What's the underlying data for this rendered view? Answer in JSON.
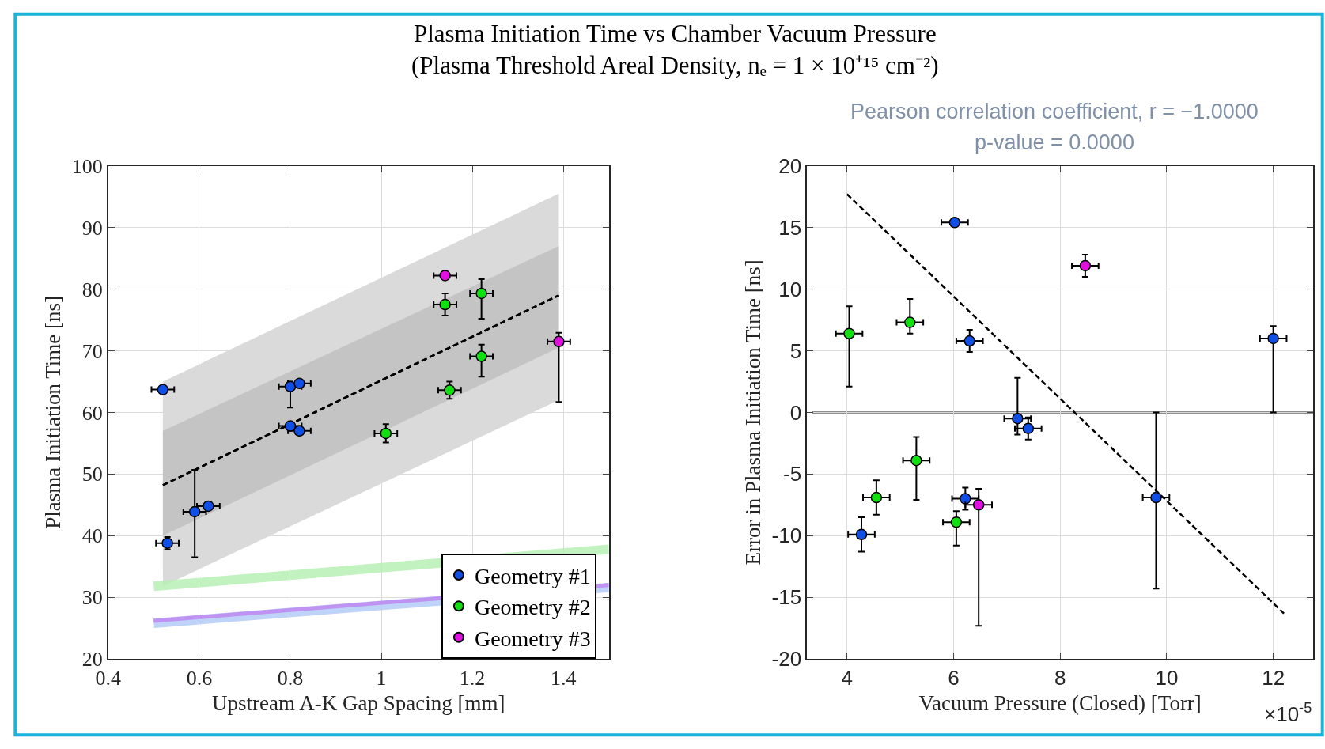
{
  "chart_data": [
    {
      "type": "scatter",
      "title": "Plasma Initiation Time vs Chamber Vacuum Pressure",
      "subtitle": "(Plasma Threshold Areal Density, nₑ = 1 × 10⁺¹⁵ cm⁻²)",
      "xlabel": "Upstream A-K Gap Spacing [mm]",
      "ylabel": "Plasma Initiation Time [ns]",
      "xlim": [
        0.4,
        1.5
      ],
      "xticks": [
        0.4,
        0.6,
        0.8,
        1,
        1.2,
        1.4
      ],
      "ylim": [
        20,
        100
      ],
      "yticks": [
        20,
        30,
        40,
        50,
        60,
        70,
        80,
        90,
        100
      ],
      "grid": true,
      "legend": "bottom right",
      "series": [
        {
          "type": "line",
          "color": "#000000",
          "line_style": "dashed",
          "x": [
            0.52,
            1.39
          ],
          "values": [
            48.2,
            79.0
          ],
          "lower": [
            31.8,
            62.0
          ],
          "upper": [
            65.0,
            95.5
          ]
        },
        {
          "type": "line",
          "color": "#000000",
          "line_style": "dashed",
          "x": [
            0.52,
            1.39
          ],
          "values": [
            48.2,
            79.0
          ],
          "lower": [
            40.0,
            70.5
          ],
          "upper": [
            57.0,
            87.0
          ]
        },
        {
          "type": "line",
          "color": "#b8f0b4",
          "line_style": "solid",
          "x": [
            0.5,
            1.5
          ],
          "values": [
            31.8,
            37.8
          ]
        },
        {
          "type": "line",
          "color": "#b4ccf8",
          "line_style": "solid",
          "x": [
            0.5,
            1.5
          ],
          "values": [
            25.8,
            31.6
          ]
        },
        {
          "type": "line",
          "color": "#c088f0",
          "line_style": "solid",
          "x": [
            0.5,
            1.5
          ],
          "values": [
            26.2,
            32.0
          ]
        },
        {
          "marker": "circle",
          "name": "Geometry #1",
          "color": "#0f4fe6",
          "x": [
            0.52,
            0.53,
            0.59,
            0.62,
            0.8,
            0.82,
            0.8,
            0.82
          ],
          "values": [
            63.7,
            38.8,
            43.9,
            44.8,
            64.2,
            64.7,
            57.8,
            57.0
          ],
          "errors": [
            null,
            1.0,
            [
              36.5,
              50.7
            ],
            null,
            [
              60.8,
              65.0
            ],
            null,
            null,
            null
          ],
          "xerrors": [
            0.025,
            0.025,
            0.025,
            0.025,
            0.025,
            0.025,
            0.025,
            0.025
          ]
        },
        {
          "marker": "circle",
          "name": "Geometry #2",
          "color": "#10e010",
          "x": [
            1.01,
            1.14,
            1.15,
            1.22,
            1.22
          ],
          "values": [
            56.6,
            77.5,
            63.6,
            79.3,
            69.1
          ],
          "errors": [
            1.5,
            1.8,
            1.4,
            [
              75.2,
              81.6
            ],
            [
              65.8,
              71.0
            ]
          ],
          "xerrors": [
            0.025,
            0.025,
            0.025,
            0.025,
            0.025
          ]
        },
        {
          "marker": "circle",
          "name": "Geometry #3",
          "color": "#e010e0",
          "x": [
            1.14,
            1.39
          ],
          "values": [
            82.2,
            71.5
          ],
          "errors": [
            null,
            [
              61.7,
              72.9
            ]
          ],
          "xerrors": [
            0.025,
            0.025
          ]
        }
      ]
    },
    {
      "type": "scatter",
      "xlabel": "Vacuum Pressure (Closed) [Torr]",
      "ylabel": "Error in Plasma Initiation Time [ns]",
      "xlim": [
        3.25,
        12.75
      ],
      "xticks": [
        4,
        6,
        8,
        10,
        12
      ],
      "ylim": [
        -20,
        20
      ],
      "yticks": [
        -20,
        -15,
        -10,
        -5,
        0,
        5,
        10,
        15,
        20
      ],
      "grid": true,
      "annotations": [
        "×10$^{-5}$",
        "Pearson correlation coefficient, r = −1.0000",
        "p-value = 0.0000"
      ],
      "ref_lines": [
        {
          "axis": "y",
          "value": 0,
          "color": "#8c8c8c"
        }
      ],
      "series": [
        {
          "type": "line",
          "color": "#000000",
          "line_style": "dashed",
          "x": [
            4.0,
            12.2
          ],
          "values": [
            17.7,
            -16.3
          ]
        },
        {
          "marker": "circle",
          "color": "#0f4fe6",
          "x": [
            6.02,
            6.3,
            12.0,
            7.2,
            7.4,
            9.8,
            6.22,
            4.27
          ],
          "values": [
            15.4,
            5.8,
            6.0,
            -0.5,
            -1.3,
            -6.9,
            -7.0,
            -9.9
          ],
          "errors": [
            null,
            0.9,
            [
              0,
              7.0
            ],
            [
              -1.8,
              2.8
            ],
            0.9,
            [
              -14.3,
              0
            ],
            0.9,
            1.4
          ],
          "xerrors": [
            0.25,
            0.25,
            0.25,
            0.25,
            0.25,
            0.25,
            0.25,
            0.25
          ]
        },
        {
          "marker": "circle",
          "color": "#10e010",
          "x": [
            4.04,
            5.18,
            5.3,
            4.55,
            6.05
          ],
          "values": [
            6.4,
            7.3,
            -3.9,
            -6.9,
            -8.9
          ],
          "errors": [
            [
              2.1,
              8.6
            ],
            [
              6.4,
              9.2
            ],
            [
              -7.1,
              -2.0
            ],
            [
              -8.3,
              -5.5
            ],
            [
              -10.8,
              -8.0
            ]
          ],
          "xerrors": [
            0.25,
            0.25,
            0.25,
            0.25,
            0.25
          ]
        },
        {
          "marker": "circle",
          "color": "#e010e0",
          "x": [
            8.47,
            6.47
          ],
          "values": [
            11.9,
            -7.5
          ],
          "errors": [
            0.9,
            [
              -17.3,
              -6.2
            ]
          ],
          "xerrors": [
            0.25,
            0.25
          ]
        }
      ]
    }
  ]
}
